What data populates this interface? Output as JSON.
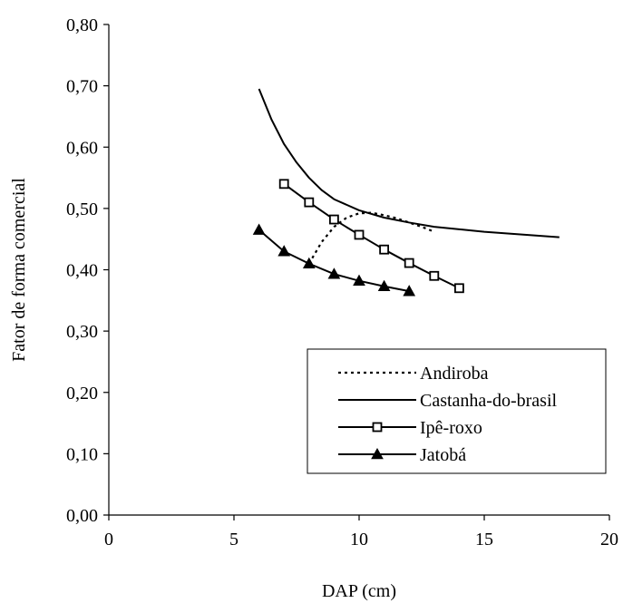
{
  "chart_data": {
    "type": "line",
    "title": "",
    "xlabel": "DAP (cm)",
    "ylabel": "Fator de forma comercial",
    "xlim": [
      0,
      20
    ],
    "ylim": [
      0,
      0.8
    ],
    "x_ticks": [
      0,
      5,
      10,
      15,
      20
    ],
    "x_tick_labels": [
      "0",
      "5",
      "10",
      "15",
      "20"
    ],
    "y_ticks": [
      0,
      0.1,
      0.2,
      0.3,
      0.4,
      0.5,
      0.6,
      0.7,
      0.8
    ],
    "y_tick_labels": [
      "0,00",
      "0,10",
      "0,20",
      "0,30",
      "0,40",
      "0,50",
      "0,60",
      "0,70",
      "0,80"
    ],
    "grid": false,
    "legend_position": "bottom-right",
    "series": [
      {
        "name": "Andiroba",
        "color": "#000000",
        "style": "dotted",
        "marker": "none",
        "x": [
          8,
          8.5,
          9,
          9.5,
          10,
          10.5,
          11,
          11.5,
          12,
          12.5,
          13
        ],
        "y": [
          0.41,
          0.445,
          0.47,
          0.485,
          0.492,
          0.493,
          0.489,
          0.484,
          0.477,
          0.47,
          0.462
        ]
      },
      {
        "name": "Castanha-do-brasil",
        "color": "#000000",
        "style": "solid",
        "marker": "none",
        "x": [
          6,
          6.5,
          7,
          7.5,
          8,
          8.5,
          9,
          10,
          11,
          12,
          13,
          14,
          15,
          16,
          17,
          18
        ],
        "y": [
          0.695,
          0.645,
          0.605,
          0.575,
          0.55,
          0.53,
          0.515,
          0.497,
          0.485,
          0.477,
          0.47,
          0.466,
          0.462,
          0.459,
          0.456,
          0.453
        ]
      },
      {
        "name": "Ipê-roxo",
        "color": "#000000",
        "style": "solid",
        "marker": "square",
        "x": [
          7,
          8,
          9,
          10,
          11,
          12,
          13,
          14
        ],
        "y": [
          0.54,
          0.51,
          0.482,
          0.457,
          0.433,
          0.411,
          0.39,
          0.37
        ]
      },
      {
        "name": "Jatobá",
        "color": "#000000",
        "style": "solid",
        "marker": "triangle",
        "x": [
          6,
          7,
          8,
          9,
          10,
          11,
          12
        ],
        "y": [
          0.465,
          0.43,
          0.41,
          0.393,
          0.382,
          0.373,
          0.365
        ]
      }
    ]
  }
}
